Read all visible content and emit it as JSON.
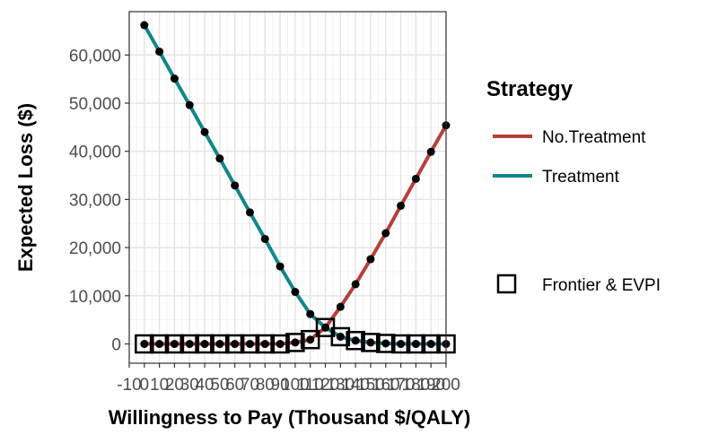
{
  "chart_data": {
    "type": "line",
    "xlabel": "Willingness to Pay (Thousand $/QALY)",
    "ylabel": "Expected Loss ($)",
    "xlim": [
      -10,
      200
    ],
    "ylim": [
      -4000,
      69000
    ],
    "x_tick_labels": [
      "-10",
      "0",
      "10",
      "20",
      "30",
      "40",
      "50",
      "60",
      "70",
      "80",
      "90",
      "100",
      "110",
      "120",
      "130",
      "140",
      "150",
      "160",
      "170",
      "180",
      "190",
      "200"
    ],
    "x_tick_values": [
      -10,
      0,
      10,
      20,
      30,
      40,
      50,
      60,
      70,
      80,
      90,
      100,
      110,
      120,
      130,
      140,
      150,
      160,
      170,
      180,
      190,
      200
    ],
    "y_tick_labels": [
      "0",
      "10,000",
      "20,000",
      "30,000",
      "40,000",
      "50,000",
      "60,000"
    ],
    "y_tick_values": [
      0,
      10000,
      20000,
      30000,
      40000,
      50000,
      60000
    ],
    "grid": true,
    "legend_position": "right",
    "legend_title": "Strategy",
    "x": [
      0,
      10,
      20,
      30,
      40,
      50,
      60,
      70,
      80,
      90,
      100,
      110,
      120,
      130,
      140,
      150,
      160,
      170,
      180,
      190,
      200
    ],
    "series": [
      {
        "name": "No.Treatment",
        "color": "#b5403a",
        "values": [
          0,
          0,
          0,
          0,
          0,
          0,
          0,
          0,
          0,
          0,
          300,
          900,
          3400,
          7700,
          12400,
          17600,
          23000,
          28700,
          34300,
          39900,
          45400
        ]
      },
      {
        "name": "Treatment",
        "color": "#12868a",
        "values": [
          66200,
          60700,
          55100,
          49600,
          44000,
          38500,
          32900,
          27300,
          21800,
          16100,
          10800,
          6200,
          3400,
          1500,
          700,
          300,
          100,
          0,
          0,
          0,
          0
        ]
      }
    ],
    "frontier": {
      "name": "Frontier & EVPI",
      "values": [
        0,
        0,
        0,
        0,
        0,
        0,
        0,
        0,
        0,
        0,
        300,
        900,
        3400,
        1500,
        700,
        300,
        100,
        0,
        0,
        0,
        0
      ]
    }
  }
}
